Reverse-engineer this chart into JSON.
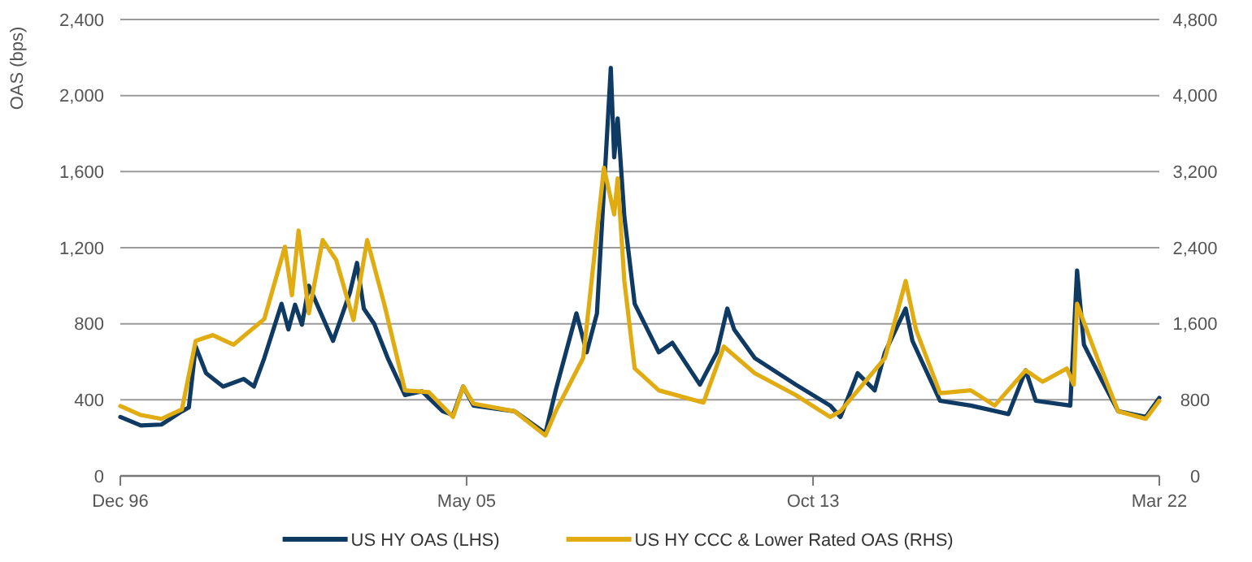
{
  "chart_data": {
    "type": "line",
    "ylabel": "OAS (bps)",
    "xlim": [
      "1996-12",
      "2022-03"
    ],
    "xticks": [
      {
        "value": "1996-12",
        "label": "Dec 96"
      },
      {
        "value": "2005-05",
        "label": "May 05"
      },
      {
        "value": "2013-10",
        "label": "Oct 13"
      },
      {
        "value": "2022-03",
        "label": "Mar 22"
      }
    ],
    "ylim": [
      0,
      2400
    ],
    "yticks": [
      0,
      400,
      800,
      {
        "value": 1200,
        "label": "1,200"
      },
      {
        "value": 1600,
        "label": "1,600"
      },
      {
        "value": 2000,
        "label": "2,000"
      },
      {
        "value": 2400,
        "label": "2,400"
      }
    ],
    "y2lim": [
      0,
      4800
    ],
    "y2ticks": [
      0,
      800,
      {
        "value": 1600,
        "label": "1,600"
      },
      {
        "value": 2400,
        "label": "2,400"
      },
      {
        "value": 3200,
        "label": "3,200"
      },
      {
        "value": 4000,
        "label": "4,000"
      },
      {
        "value": 4800,
        "label": "4,800"
      }
    ],
    "grid": "y",
    "legend": "bottom",
    "marker": "none",
    "line_style": "solid",
    "series": [
      {
        "name": "US HY OAS (LHS)",
        "color": "#0e3a64",
        "x": [
          "1996-12",
          "1997-06",
          "1997-12",
          "1998-06",
          "1998-08",
          "1998-10",
          "1999-01",
          "1999-06",
          "1999-12",
          "2000-03",
          "2000-06",
          "2000-11",
          "2001-01",
          "2001-03",
          "2001-05",
          "2001-07",
          "2002-02",
          "2002-07",
          "2002-09",
          "2002-11",
          "2003-02",
          "2003-06",
          "2003-11",
          "2004-04",
          "2004-10",
          "2005-01",
          "2005-04",
          "2005-07",
          "2006-07",
          "2007-04",
          "2007-07",
          "2008-01",
          "2008-04",
          "2008-07",
          "2008-11",
          "2008-12",
          "2009-01",
          "2009-03",
          "2009-06",
          "2010-01",
          "2010-05",
          "2011-01",
          "2011-06",
          "2011-09",
          "2011-11",
          "2012-05",
          "2013-05",
          "2014-03",
          "2014-06",
          "2014-11",
          "2015-04",
          "2015-07",
          "2016-01",
          "2016-03",
          "2016-11",
          "2017-08",
          "2018-07",
          "2018-12",
          "2019-03",
          "2020-01",
          "2020-03",
          "2020-05",
          "2020-10",
          "2021-03",
          "2021-11",
          "2022-03"
        ],
        "values": [
          310,
          265,
          270,
          340,
          360,
          680,
          540,
          470,
          510,
          470,
          620,
          905,
          770,
          900,
          795,
          1000,
          710,
          965,
          1120,
          880,
          800,
          620,
          425,
          445,
          340,
          320,
          470,
          370,
          340,
          225,
          450,
          855,
          650,
          855,
          2145,
          1675,
          1880,
          1365,
          905,
          650,
          700,
          480,
          650,
          880,
          770,
          620,
          480,
          370,
          310,
          540,
          450,
          650,
          880,
          710,
          395,
          370,
          325,
          555,
          395,
          370,
          1080,
          690,
          510,
          340,
          310,
          410
        ]
      },
      {
        "name": "US HY CCC & Lower Rated OAS (RHS)",
        "color": "#e1ac12",
        "axis": "y2",
        "x": [
          "1996-12",
          "1997-06",
          "1997-12",
          "1998-06",
          "1998-10",
          "1999-03",
          "1999-09",
          "2000-06",
          "2000-12",
          "2001-02",
          "2001-04",
          "2001-07",
          "2001-11",
          "2002-03",
          "2002-08",
          "2002-12",
          "2003-05",
          "2003-11",
          "2004-06",
          "2005-01",
          "2005-04",
          "2005-07",
          "2006-07",
          "2007-04",
          "2007-07",
          "2008-03",
          "2008-09",
          "2008-12",
          "2009-01",
          "2009-03",
          "2009-06",
          "2010-01",
          "2011-02",
          "2011-08",
          "2012-05",
          "2013-05",
          "2014-03",
          "2014-06",
          "2015-07",
          "2016-01",
          "2016-04",
          "2016-11",
          "2017-08",
          "2018-03",
          "2018-12",
          "2019-05",
          "2019-12",
          "2020-02",
          "2020-03",
          "2020-10",
          "2021-03",
          "2021-11",
          "2022-03"
        ],
        "values": [
          735,
          640,
          600,
          700,
          1420,
          1480,
          1380,
          1650,
          2410,
          1900,
          2580,
          1710,
          2480,
          2270,
          1640,
          2480,
          1810,
          900,
          880,
          620,
          940,
          760,
          680,
          425,
          680,
          1240,
          3240,
          2750,
          3130,
          2050,
          1130,
          900,
          770,
          1360,
          1080,
          850,
          620,
          680,
          1240,
          2050,
          1540,
          870,
          900,
          740,
          1110,
          990,
          1130,
          960,
          1810,
          1130,
          680,
          600,
          790
        ]
      }
    ]
  }
}
